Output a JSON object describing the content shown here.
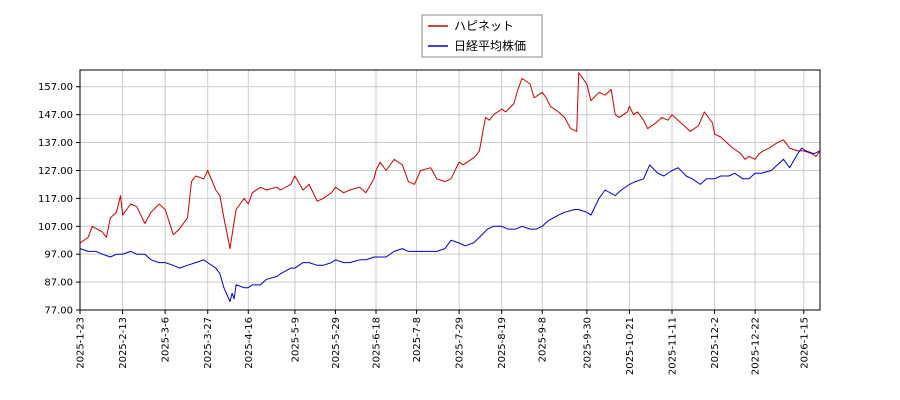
{
  "chart_data": {
    "type": "line",
    "title": "",
    "xlabel": "",
    "ylabel": "",
    "ylim": [
      77.0,
      163.0
    ],
    "yticks": [
      77.0,
      87.0,
      97.0,
      107.0,
      117.0,
      127.0,
      137.0,
      147.0,
      157.0
    ],
    "ytick_labels": [
      "77.00",
      "87.00",
      "97.00",
      "107.00",
      "117.00",
      "127.00",
      "137.00",
      "147.00",
      "157.00"
    ],
    "xlim": [
      "2025-01-23",
      "2026-01-23"
    ],
    "xticks": [
      "2025-1-23",
      "2025-2-13",
      "2025-3-6",
      "2025-3-27",
      "2025-4-16",
      "2025-5-9",
      "2025-5-29",
      "2025-6-18",
      "2025-7-8",
      "2025-7-29",
      "2025-8-19",
      "2025-9-8",
      "2025-9-30",
      "2025-10-21",
      "2025-11-11",
      "2025-12-2",
      "2025-12-22",
      "2026-1-15"
    ],
    "grid": true,
    "legend_position": "top-center",
    "series": [
      {
        "name": "ハピネット",
        "color": "#cc0000",
        "points": [
          [
            "2025-01-23",
            101
          ],
          [
            "2025-01-27",
            103
          ],
          [
            "2025-01-29",
            107
          ],
          [
            "2025-02-03",
            105
          ],
          [
            "2025-02-05",
            103
          ],
          [
            "2025-02-07",
            110
          ],
          [
            "2025-02-10",
            112
          ],
          [
            "2025-02-12",
            118
          ],
          [
            "2025-02-13",
            111
          ],
          [
            "2025-02-17",
            115
          ],
          [
            "2025-02-20",
            114
          ],
          [
            "2025-02-24",
            108
          ],
          [
            "2025-02-27",
            112
          ],
          [
            "2025-03-03",
            115
          ],
          [
            "2025-03-06",
            113
          ],
          [
            "2025-03-10",
            104
          ],
          [
            "2025-03-13",
            106
          ],
          [
            "2025-03-17",
            110
          ],
          [
            "2025-03-19",
            123
          ],
          [
            "2025-03-21",
            125
          ],
          [
            "2025-03-25",
            124
          ],
          [
            "2025-03-27",
            127
          ],
          [
            "2025-03-31",
            120
          ],
          [
            "2025-04-02",
            118
          ],
          [
            "2025-04-04",
            110
          ],
          [
            "2025-04-07",
            99
          ],
          [
            "2025-04-08",
            104
          ],
          [
            "2025-04-10",
            113
          ],
          [
            "2025-04-14",
            117
          ],
          [
            "2025-04-16",
            115
          ],
          [
            "2025-04-18",
            119
          ],
          [
            "2025-04-22",
            121
          ],
          [
            "2025-04-25",
            120
          ],
          [
            "2025-04-30",
            121
          ],
          [
            "2025-05-02",
            120
          ],
          [
            "2025-05-07",
            122
          ],
          [
            "2025-05-09",
            125
          ],
          [
            "2025-05-13",
            120
          ],
          [
            "2025-05-16",
            122
          ],
          [
            "2025-05-20",
            116
          ],
          [
            "2025-05-23",
            117
          ],
          [
            "2025-05-27",
            119
          ],
          [
            "2025-05-29",
            121
          ],
          [
            "2025-06-02",
            119
          ],
          [
            "2025-06-05",
            120
          ],
          [
            "2025-06-10",
            121
          ],
          [
            "2025-06-13",
            119
          ],
          [
            "2025-06-17",
            124
          ],
          [
            "2025-06-18",
            127
          ],
          [
            "2025-06-20",
            130
          ],
          [
            "2025-06-23",
            127
          ],
          [
            "2025-06-27",
            131
          ],
          [
            "2025-07-01",
            129
          ],
          [
            "2025-07-04",
            123
          ],
          [
            "2025-07-07",
            122
          ],
          [
            "2025-07-10",
            127
          ],
          [
            "2025-07-15",
            128
          ],
          [
            "2025-07-18",
            124
          ],
          [
            "2025-07-22",
            123
          ],
          [
            "2025-07-25",
            124
          ],
          [
            "2025-07-29",
            130
          ],
          [
            "2025-07-31",
            129
          ],
          [
            "2025-08-04",
            131
          ],
          [
            "2025-08-06",
            132
          ],
          [
            "2025-08-08",
            134
          ],
          [
            "2025-08-11",
            146
          ],
          [
            "2025-08-13",
            145
          ],
          [
            "2025-08-15",
            147
          ],
          [
            "2025-08-19",
            149
          ],
          [
            "2025-08-21",
            148
          ],
          [
            "2025-08-25",
            151
          ],
          [
            "2025-08-27",
            156
          ],
          [
            "2025-08-29",
            160
          ],
          [
            "2025-09-02",
            158
          ],
          [
            "2025-09-04",
            153
          ],
          [
            "2025-09-08",
            155
          ],
          [
            "2025-09-10",
            153
          ],
          [
            "2025-09-12",
            150
          ],
          [
            "2025-09-16",
            148
          ],
          [
            "2025-09-19",
            146
          ],
          [
            "2025-09-22",
            142
          ],
          [
            "2025-09-25",
            141
          ],
          [
            "2025-09-26",
            162
          ],
          [
            "2025-09-29",
            159
          ],
          [
            "2025-09-30",
            158
          ],
          [
            "2025-10-02",
            152
          ],
          [
            "2025-10-06",
            155
          ],
          [
            "2025-10-09",
            154
          ],
          [
            "2025-10-12",
            156
          ],
          [
            "2025-10-14",
            147
          ],
          [
            "2025-10-16",
            146
          ],
          [
            "2025-10-20",
            148
          ],
          [
            "2025-10-21",
            150
          ],
          [
            "2025-10-23",
            147
          ],
          [
            "2025-10-25",
            148
          ],
          [
            "2025-10-28",
            145
          ],
          [
            "2025-10-30",
            142
          ],
          [
            "2025-11-03",
            144
          ],
          [
            "2025-11-06",
            146
          ],
          [
            "2025-11-09",
            145
          ],
          [
            "2025-11-11",
            147
          ],
          [
            "2025-11-14",
            145
          ],
          [
            "2025-11-17",
            143
          ],
          [
            "2025-11-20",
            141
          ],
          [
            "2025-11-24",
            143
          ],
          [
            "2025-11-27",
            148
          ],
          [
            "2025-12-01",
            144
          ],
          [
            "2025-12-02",
            140
          ],
          [
            "2025-12-05",
            139
          ],
          [
            "2025-12-08",
            137
          ],
          [
            "2025-12-11",
            135
          ],
          [
            "2025-12-15",
            133
          ],
          [
            "2025-12-17",
            131
          ],
          [
            "2025-12-19",
            132
          ],
          [
            "2025-12-22",
            131
          ],
          [
            "2025-12-24",
            133
          ],
          [
            "2025-12-26",
            134
          ],
          [
            "2025-12-29",
            135
          ],
          [
            "2026-01-02",
            137
          ],
          [
            "2026-01-05",
            138
          ],
          [
            "2026-01-08",
            135
          ],
          [
            "2026-01-12",
            134
          ],
          [
            "2026-01-15",
            134
          ],
          [
            "2026-01-19",
            133
          ],
          [
            "2026-01-21",
            132
          ],
          [
            "2026-01-23",
            134
          ]
        ]
      },
      {
        "name": "日経平均株価",
        "color": "#0000cc",
        "points": [
          [
            "2025-01-23",
            99
          ],
          [
            "2025-01-27",
            98
          ],
          [
            "2025-01-31",
            98
          ],
          [
            "2025-02-03",
            97
          ],
          [
            "2025-02-07",
            96
          ],
          [
            "2025-02-10",
            97
          ],
          [
            "2025-02-13",
            97
          ],
          [
            "2025-02-17",
            98
          ],
          [
            "2025-02-20",
            97
          ],
          [
            "2025-02-24",
            97
          ],
          [
            "2025-02-27",
            95
          ],
          [
            "2025-03-03",
            94
          ],
          [
            "2025-03-06",
            94
          ],
          [
            "2025-03-10",
            93
          ],
          [
            "2025-03-13",
            92
          ],
          [
            "2025-03-17",
            93
          ],
          [
            "2025-03-21",
            94
          ],
          [
            "2025-03-25",
            95
          ],
          [
            "2025-03-27",
            94
          ],
          [
            "2025-03-31",
            92
          ],
          [
            "2025-04-02",
            90
          ],
          [
            "2025-04-04",
            85
          ],
          [
            "2025-04-07",
            80
          ],
          [
            "2025-04-08",
            83
          ],
          [
            "2025-04-09",
            81
          ],
          [
            "2025-04-10",
            86
          ],
          [
            "2025-04-14",
            85
          ],
          [
            "2025-04-16",
            85
          ],
          [
            "2025-04-18",
            86
          ],
          [
            "2025-04-22",
            86
          ],
          [
            "2025-04-25",
            88
          ],
          [
            "2025-04-30",
            89
          ],
          [
            "2025-05-02",
            90
          ],
          [
            "2025-05-07",
            92
          ],
          [
            "2025-05-09",
            92
          ],
          [
            "2025-05-13",
            94
          ],
          [
            "2025-05-16",
            94
          ],
          [
            "2025-05-20",
            93
          ],
          [
            "2025-05-23",
            93
          ],
          [
            "2025-05-27",
            94
          ],
          [
            "2025-05-29",
            95
          ],
          [
            "2025-06-02",
            94
          ],
          [
            "2025-06-05",
            94
          ],
          [
            "2025-06-10",
            95
          ],
          [
            "2025-06-13",
            95
          ],
          [
            "2025-06-17",
            96
          ],
          [
            "2025-06-18",
            96
          ],
          [
            "2025-06-23",
            96
          ],
          [
            "2025-06-27",
            98
          ],
          [
            "2025-07-01",
            99
          ],
          [
            "2025-07-04",
            98
          ],
          [
            "2025-07-08",
            98
          ],
          [
            "2025-07-11",
            98
          ],
          [
            "2025-07-15",
            98
          ],
          [
            "2025-07-18",
            98
          ],
          [
            "2025-07-22",
            99
          ],
          [
            "2025-07-25",
            102
          ],
          [
            "2025-07-29",
            101
          ],
          [
            "2025-08-01",
            100
          ],
          [
            "2025-08-05",
            101
          ],
          [
            "2025-08-08",
            103
          ],
          [
            "2025-08-12",
            106
          ],
          [
            "2025-08-15",
            107
          ],
          [
            "2025-08-19",
            107
          ],
          [
            "2025-08-22",
            106
          ],
          [
            "2025-08-26",
            106
          ],
          [
            "2025-08-29",
            107
          ],
          [
            "2025-09-02",
            106
          ],
          [
            "2025-09-05",
            106
          ],
          [
            "2025-09-08",
            107
          ],
          [
            "2025-09-11",
            109
          ],
          [
            "2025-09-16",
            111
          ],
          [
            "2025-09-19",
            112
          ],
          [
            "2025-09-24",
            113
          ],
          [
            "2025-09-26",
            113
          ],
          [
            "2025-09-30",
            112
          ],
          [
            "2025-10-02",
            111
          ],
          [
            "2025-10-06",
            117
          ],
          [
            "2025-10-09",
            120
          ],
          [
            "2025-10-14",
            118
          ],
          [
            "2025-10-17",
            120
          ],
          [
            "2025-10-21",
            122
          ],
          [
            "2025-10-24",
            123
          ],
          [
            "2025-10-28",
            124
          ],
          [
            "2025-10-31",
            129
          ],
          [
            "2025-11-04",
            126
          ],
          [
            "2025-11-07",
            125
          ],
          [
            "2025-11-11",
            127
          ],
          [
            "2025-11-14",
            128
          ],
          [
            "2025-11-18",
            125
          ],
          [
            "2025-11-21",
            124
          ],
          [
            "2025-11-25",
            122
          ],
          [
            "2025-11-28",
            124
          ],
          [
            "2025-12-02",
            124
          ],
          [
            "2025-12-05",
            125
          ],
          [
            "2025-12-09",
            125
          ],
          [
            "2025-12-12",
            126
          ],
          [
            "2025-12-16",
            124
          ],
          [
            "2025-12-19",
            124
          ],
          [
            "2025-12-22",
            126
          ],
          [
            "2025-12-25",
            126
          ],
          [
            "2025-12-30",
            127
          ],
          [
            "2026-01-05",
            131
          ],
          [
            "2026-01-08",
            128
          ],
          [
            "2026-01-12",
            133
          ],
          [
            "2026-01-14",
            135
          ],
          [
            "2026-01-16",
            134
          ],
          [
            "2026-01-20",
            133
          ],
          [
            "2026-01-23",
            134
          ]
        ]
      }
    ]
  }
}
